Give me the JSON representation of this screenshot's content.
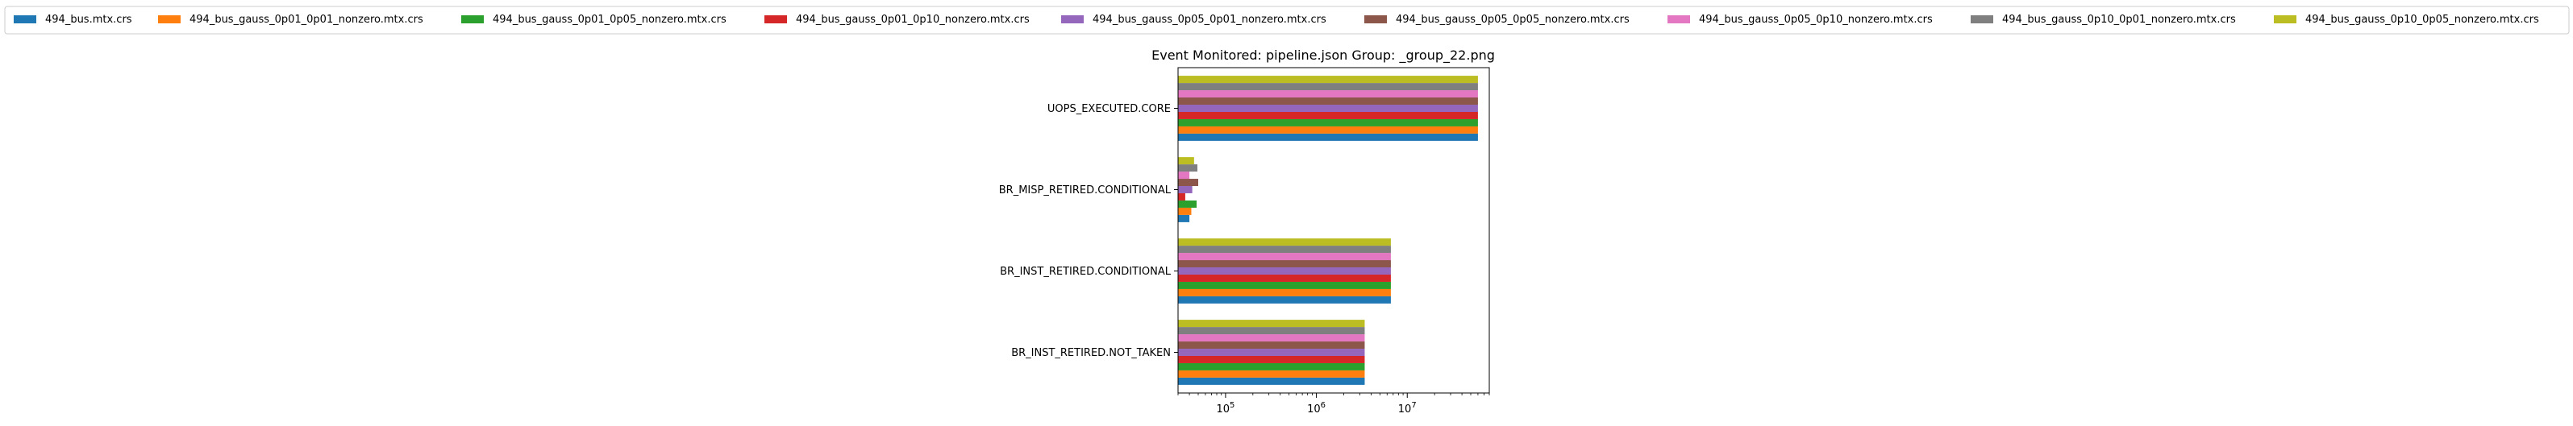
{
  "chart_data": {
    "type": "bar",
    "orientation": "horizontal",
    "title": "Event Monitored: pipeline.json Group: _group_22.png",
    "xlabel": "",
    "ylabel": "",
    "x_scale": "log",
    "xlim": [
      30000,
      80000000
    ],
    "x_ticks": [
      {
        "value": 100000,
        "base": "10",
        "exp": "5"
      },
      {
        "value": 1000000,
        "base": "10",
        "exp": "6"
      },
      {
        "value": 10000000,
        "base": "10",
        "exp": "7"
      }
    ],
    "categories": [
      "BR_INST_RETIRED.NOT_TAKEN",
      "BR_INST_RETIRED.CONDITIONAL",
      "BR_MISP_RETIRED.CONDITIONAL",
      "UOPS_EXECUTED.CORE"
    ],
    "legend_position": "top",
    "grid": false,
    "series": [
      {
        "name": "494_bus.mtx.crs",
        "color": "#1f77b4",
        "values": [
          3400000,
          6600000,
          40000,
          60000000
        ]
      },
      {
        "name": "494_bus_gauss_0p01_0p01_nonzero.mtx.crs",
        "color": "#ff7f0e",
        "values": [
          3400000,
          6600000,
          42000,
          60000000
        ]
      },
      {
        "name": "494_bus_gauss_0p01_0p05_nonzero.mtx.crs",
        "color": "#2ca02c",
        "values": [
          3400000,
          6600000,
          48000,
          60000000
        ]
      },
      {
        "name": "494_bus_gauss_0p01_0p10_nonzero.mtx.crs",
        "color": "#d62728",
        "values": [
          3400000,
          6600000,
          36000,
          60000000
        ]
      },
      {
        "name": "494_bus_gauss_0p05_0p01_nonzero.mtx.crs",
        "color": "#9467bd",
        "values": [
          3400000,
          6600000,
          43000,
          60000000
        ]
      },
      {
        "name": "494_bus_gauss_0p05_0p05_nonzero.mtx.crs",
        "color": "#8c564b",
        "values": [
          3400000,
          6600000,
          50000,
          60000000
        ]
      },
      {
        "name": "494_bus_gauss_0p05_0p10_nonzero.mtx.crs",
        "color": "#e377c2",
        "values": [
          3400000,
          6600000,
          40000,
          60000000
        ]
      },
      {
        "name": "494_bus_gauss_0p10_0p01_nonzero.mtx.crs",
        "color": "#7f7f7f",
        "values": [
          3400000,
          6600000,
          49000,
          60000000
        ]
      },
      {
        "name": "494_bus_gauss_0p10_0p05_nonzero.mtx.crs",
        "color": "#bcbd22",
        "values": [
          3400000,
          6600000,
          45000,
          60000000
        ]
      }
    ]
  }
}
